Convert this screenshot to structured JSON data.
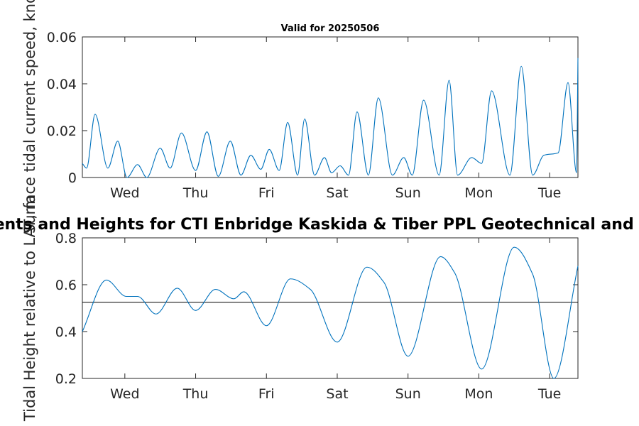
{
  "chart_data": [
    {
      "type": "line",
      "title": "Valid for 20250506",
      "ylabel": "Surface tidal current speed, knots",
      "xlim": [
        0,
        7
      ],
      "ylim": [
        0,
        0.06
      ],
      "yticks": [
        0,
        0.02,
        0.04,
        0.06
      ],
      "ytick_labels": [
        "0",
        "0.02",
        "0.04",
        "0.06"
      ],
      "xticks": [
        0.6,
        1.6,
        2.6,
        3.6,
        4.6,
        5.6,
        6.6
      ],
      "xtick_labels": [
        "Wed",
        "Thu",
        "Fri",
        "Sat",
        "Sun",
        "Mon",
        "Tue"
      ],
      "grid": false,
      "color": "#0072BD",
      "series": [
        {
          "x": [
            0,
            0.06,
            0.18,
            0.36,
            0.5,
            0.63,
            0.78,
            0.91,
            1.1,
            1.24,
            1.4,
            1.6,
            1.76,
            1.92,
            2.09,
            2.24,
            2.38,
            2.52,
            2.64,
            2.78,
            2.9,
            3.04,
            3.14,
            3.28,
            3.42,
            3.52,
            3.64,
            3.76,
            3.88,
            4.04,
            4.18,
            4.38,
            4.54,
            4.66,
            4.82,
            5.04,
            5.18,
            5.3,
            5.5,
            5.64,
            5.78,
            6.04,
            6.2,
            6.36,
            6.52,
            6.72,
            6.86,
            6.98,
            7.0
          ],
          "y": [
            0.006,
            0.004,
            0.027,
            0.004,
            0.0155,
            0.0,
            0.0055,
            0.0,
            0.0125,
            0.004,
            0.019,
            0.003,
            0.0195,
            0.0005,
            0.0155,
            0.001,
            0.0095,
            0.0035,
            0.012,
            0.003,
            0.0235,
            0.001,
            0.025,
            0.001,
            0.0085,
            0.002,
            0.005,
            0.001,
            0.028,
            0.001,
            0.034,
            0.001,
            0.0085,
            0.001,
            0.033,
            0.001,
            0.0415,
            0.001,
            0.0085,
            0.006,
            0.037,
            0.001,
            0.0475,
            0.001,
            0.0095,
            0.0105,
            0.0405,
            0.002,
            0.051
          ]
        }
      ]
    },
    {
      "type": "line",
      "title": "Tidal Currents and Heights for CTI Enbridge  Kaskida & Tiber PPL Geotechnical and Geophysical",
      "ylabel": "Tidal Height relative to LAT, m",
      "xlim": [
        0,
        7
      ],
      "ylim": [
        0.2,
        0.8
      ],
      "yticks": [
        0.2,
        0.4,
        0.6,
        0.8
      ],
      "ytick_labels": [
        "0.2",
        "0.4",
        "0.6",
        "0.8"
      ],
      "xticks": [
        0.6,
        1.6,
        2.6,
        3.6,
        4.6,
        5.6,
        6.6
      ],
      "xtick_labels": [
        "Wed",
        "Thu",
        "Fri",
        "Sat",
        "Sun",
        "Mon",
        "Tue"
      ],
      "grid": false,
      "color": "#0072BD",
      "reference_line": {
        "y": 0.525,
        "color": "#000000"
      },
      "series": [
        {
          "x": [
            0,
            0.34,
            0.62,
            0.78,
            1.04,
            1.34,
            1.6,
            1.88,
            2.14,
            2.28,
            2.6,
            2.94,
            3.22,
            3.6,
            4.02,
            4.26,
            4.6,
            5.06,
            5.26,
            5.64,
            6.1,
            6.36,
            6.66,
            7.0
          ],
          "y": [
            0.4,
            0.62,
            0.55,
            0.55,
            0.475,
            0.585,
            0.49,
            0.58,
            0.54,
            0.57,
            0.425,
            0.625,
            0.58,
            0.355,
            0.675,
            0.61,
            0.295,
            0.72,
            0.65,
            0.24,
            0.76,
            0.645,
            0.2,
            0.68
          ]
        }
      ]
    }
  ]
}
